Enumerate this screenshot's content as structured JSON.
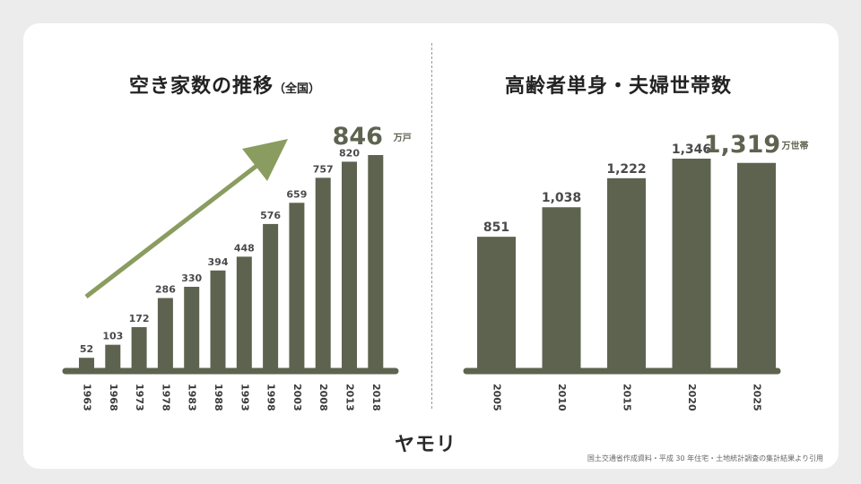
{
  "titles": {
    "left_main": "空き家数の推移",
    "left_sub": "（全国）",
    "right": "高齢者単身・夫婦世帯数"
  },
  "colors": {
    "bar": "#5e6350",
    "arrow": "#8a9c5f",
    "baseline": "#5e6350",
    "label": "#4a4a4a"
  },
  "chart_data": [
    {
      "type": "bar",
      "title": "空き家数の推移（全国）",
      "categories": [
        "1963",
        "1968",
        "1973",
        "1978",
        "1983",
        "1988",
        "1993",
        "1998",
        "2003",
        "2008",
        "2013",
        "2018"
      ],
      "values": [
        52,
        103,
        172,
        286,
        330,
        394,
        448,
        576,
        659,
        757,
        820,
        846
      ],
      "value_labels": [
        "52",
        "103",
        "172",
        "286",
        "330",
        "394",
        "448",
        "576",
        "659",
        "757",
        "820",
        "846"
      ],
      "highlight_unit": "万戸",
      "ylim": [
        0,
        846
      ],
      "grid": false,
      "annotation": "trend-arrow"
    },
    {
      "type": "bar",
      "title": "高齢者単身・夫婦世帯数",
      "categories": [
        "2005",
        "2010",
        "2015",
        "2020",
        "2025"
      ],
      "values": [
        851,
        1038,
        1222,
        1346,
        1319
      ],
      "value_labels": [
        "851",
        "1,038",
        "1,222",
        "1,346",
        "1,319"
      ],
      "highlight_unit": "万世帯",
      "ylim": [
        0,
        1346
      ],
      "grid": false
    }
  ],
  "footer": {
    "logo": "ヤモリ",
    "source": "国土交通省作成資料・平成 30 年住宅・土地統計調査の集計結果より引用"
  }
}
